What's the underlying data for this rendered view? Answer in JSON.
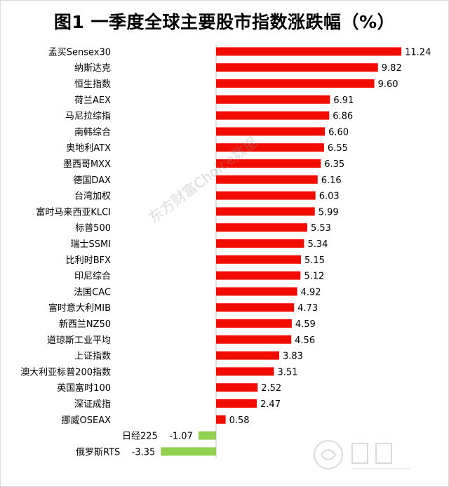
{
  "title": "图1 一季度全球主要股市指数涨跌幅（%）",
  "watermark": "东方财富Choice数据",
  "colors": {
    "positive": "#f20c00",
    "negative": "#92d050",
    "axis": "#bfbfbf"
  },
  "chart_data": {
    "type": "bar",
    "orientation": "horizontal",
    "title": "图1 一季度全球主要股市指数涨跌幅（%）",
    "categories": [
      "孟买Sensex30",
      "纳斯达克",
      "恒生指数",
      "荷兰AEX",
      "马尼拉综指",
      "南韩综合",
      "奥地利ATX",
      "墨西哥MXX",
      "德国DAX",
      "台湾加权",
      "富时马来西亚KLCI",
      "标普500",
      "瑞士SSMI",
      "比利时BFX",
      "印尼综合",
      "法国CAC",
      "富时意大利MIB",
      "新西兰NZ50",
      "道琼斯工业平均",
      "上证指数",
      "澳大利亚标普200指数",
      "英国富时100",
      "深证成指",
      "挪威OSEAX",
      "日经225",
      "俄罗斯RTS"
    ],
    "values": [
      11.24,
      9.82,
      9.6,
      6.91,
      6.86,
      6.6,
      6.55,
      6.35,
      6.16,
      6.03,
      5.99,
      5.53,
      5.34,
      5.15,
      5.12,
      4.92,
      4.73,
      4.59,
      4.56,
      3.83,
      3.51,
      2.52,
      2.47,
      0.58,
      -1.07,
      -3.35
    ],
    "value_labels": [
      "11.24",
      "9.82",
      "9.60",
      "6.91",
      "6.86",
      "6.60",
      "6.55",
      "6.35",
      "6.16",
      "6.03",
      "5.99",
      "5.53",
      "5.34",
      "5.15",
      "5.12",
      "4.92",
      "4.73",
      "4.59",
      "4.56",
      "3.83",
      "3.51",
      "2.52",
      "2.47",
      "0.58",
      "-1.07",
      "-3.35"
    ],
    "xlim": [
      -3.35,
      11.24
    ],
    "grid": false,
    "legend": "none"
  }
}
